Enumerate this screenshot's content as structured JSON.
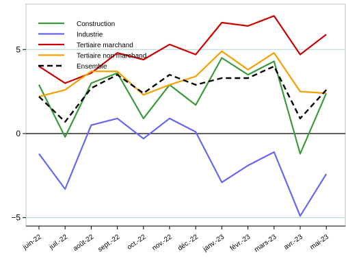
{
  "chart_data": {
    "type": "line",
    "categories": [
      "juin-22",
      "juil.-22",
      "août-22",
      "sept.-22",
      "oct.-22",
      "nov.-22",
      "déc.-22",
      "janv.-23",
      "févr.-23",
      "mars-23",
      "avr.-23",
      "mai-23"
    ],
    "ylim": [
      -5.5,
      7.7
    ],
    "yticks": [
      -5,
      0,
      5
    ],
    "grid": true,
    "legend_position": "top-left",
    "series": [
      {
        "name": "Construction",
        "color": "#3a9a3a",
        "dash": "solid",
        "values": [
          2.9,
          -0.2,
          3.0,
          3.6,
          0.9,
          2.9,
          1.7,
          4.5,
          3.5,
          4.3,
          -1.2,
          2.4
        ]
      },
      {
        "name": "Industrie",
        "color": "#6666f0",
        "dash": "solid",
        "values": [
          -1.2,
          -3.3,
          0.5,
          0.9,
          -0.3,
          0.9,
          0.1,
          -2.9,
          -1.9,
          -1.1,
          -4.9,
          -2.4
        ]
      },
      {
        "name": "Tertiaire marchand",
        "color": "#cc0000",
        "dash": "solid",
        "values": [
          4.0,
          3.0,
          3.6,
          4.8,
          4.4,
          5.3,
          4.7,
          6.6,
          6.4,
          7.0,
          4.7,
          5.9
        ]
      },
      {
        "name": "Tertiaire non marchand",
        "color": "#f5a000",
        "dash": "solid",
        "values": [
          2.2,
          2.6,
          3.7,
          3.7,
          2.3,
          2.9,
          3.4,
          4.9,
          3.8,
          4.8,
          2.5,
          2.4
        ]
      },
      {
        "name": "Ensemble",
        "color": "#000000",
        "dash": "dashed",
        "values": [
          2.2,
          0.7,
          2.7,
          3.5,
          2.4,
          3.5,
          2.9,
          3.3,
          3.3,
          4.0,
          0.9,
          2.6
        ]
      }
    ]
  }
}
